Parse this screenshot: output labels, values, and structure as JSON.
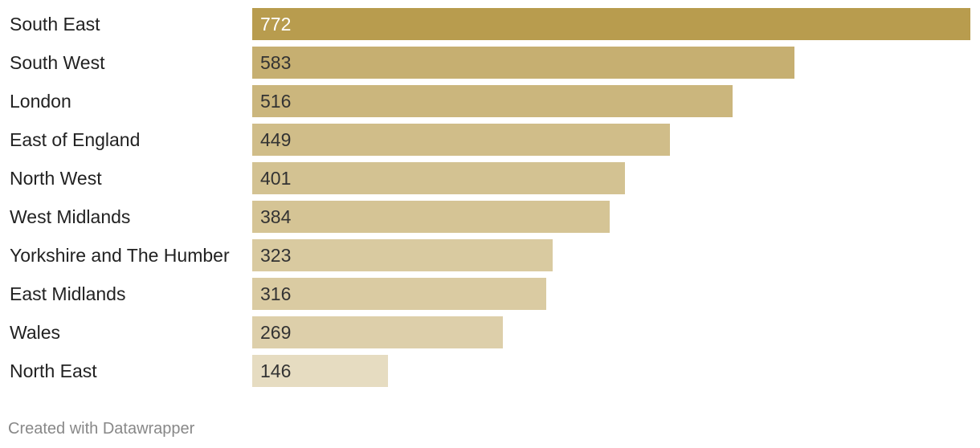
{
  "chart_data": {
    "type": "bar",
    "orientation": "horizontal",
    "categories": [
      "South East",
      "South West",
      "London",
      "East of England",
      "North West",
      "West Midlands",
      "Yorkshire and The Humber",
      "East Midlands",
      "Wales",
      "North East"
    ],
    "values": [
      772,
      583,
      516,
      449,
      401,
      384,
      323,
      316,
      269,
      146
    ],
    "value_labels": [
      "772",
      "583",
      "516",
      "449",
      "401",
      "384",
      "323",
      "316",
      "269",
      "146"
    ],
    "xlim": [
      0,
      772
    ],
    "grid": false,
    "legend": "none",
    "colors": {
      "max": "#b89c4e",
      "min": "#e6dcc1"
    }
  },
  "footer": {
    "credit": "Created with Datawrapper"
  }
}
